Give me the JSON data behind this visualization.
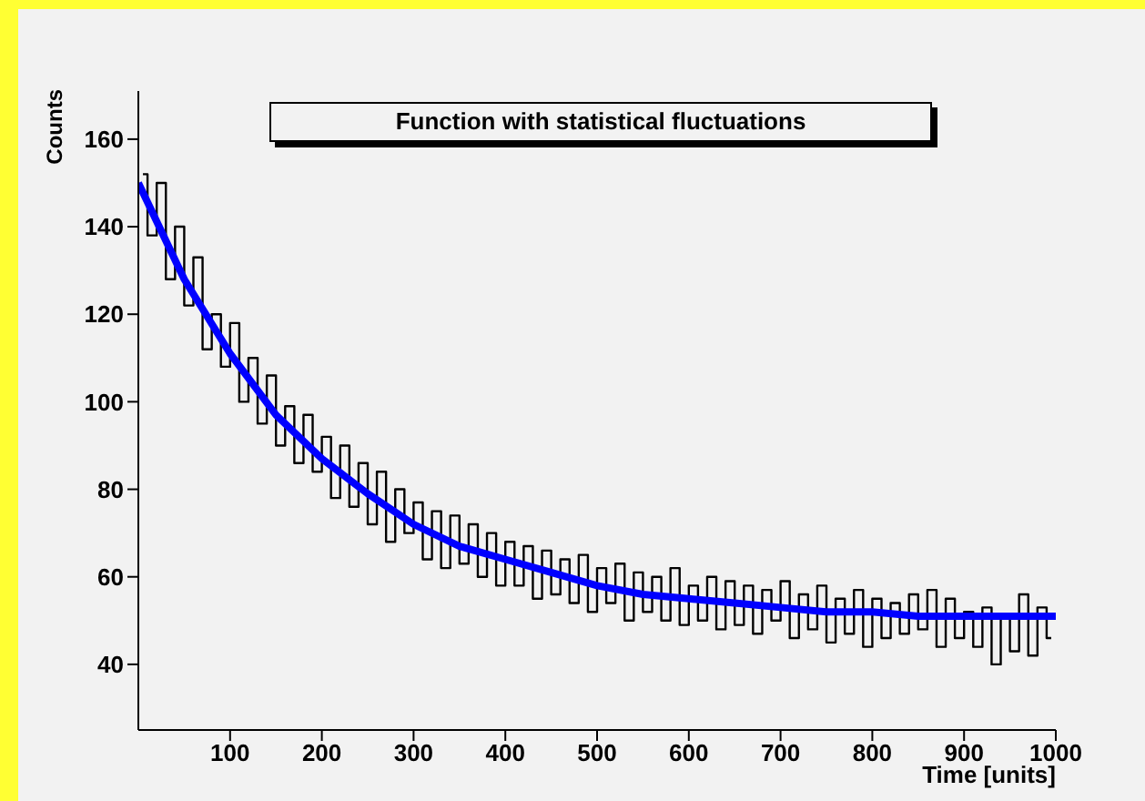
{
  "chart_data": {
    "type": "step",
    "title": "Function with statistical fluctuations",
    "xlabel": "Time [units]",
    "ylabel": "Counts",
    "xlim": [
      0,
      1000
    ],
    "xticks": [
      100,
      200,
      300,
      400,
      500,
      600,
      700,
      800,
      900,
      1000
    ],
    "ylim": [
      25,
      171
    ],
    "yticks": [
      40,
      60,
      80,
      100,
      120,
      140,
      160
    ],
    "grid": false,
    "legend": false,
    "series": [
      {
        "color": "#000000",
        "x": [
          5,
          15,
          25,
          35,
          45,
          55,
          65,
          75,
          85,
          95,
          105,
          115,
          125,
          135,
          145,
          155,
          165,
          175,
          185,
          195,
          205,
          215,
          225,
          235,
          245,
          255,
          265,
          275,
          285,
          295,
          305,
          315,
          325,
          335,
          345,
          355,
          365,
          375,
          385,
          395,
          405,
          415,
          425,
          435,
          445,
          455,
          465,
          475,
          485,
          495,
          505,
          515,
          525,
          535,
          545,
          555,
          565,
          575,
          585,
          595,
          605,
          615,
          625,
          635,
          645,
          655,
          665,
          675,
          685,
          695,
          705,
          715,
          725,
          735,
          745,
          755,
          765,
          775,
          785,
          795,
          805,
          815,
          825,
          835,
          845,
          855,
          865,
          875,
          885,
          895,
          905,
          915,
          925,
          935,
          945,
          955,
          965,
          975,
          985,
          995
        ],
        "values": [
          152,
          138,
          150,
          128,
          140,
          122,
          133,
          112,
          120,
          108,
          118,
          100,
          110,
          95,
          106,
          90,
          99,
          86,
          97,
          84,
          92,
          78,
          90,
          76,
          86,
          72,
          84,
          68,
          80,
          70,
          77,
          64,
          75,
          62,
          74,
          63,
          72,
          60,
          70,
          58,
          68,
          58,
          67,
          55,
          66,
          56,
          64,
          54,
          65,
          52,
          62,
          54,
          63,
          50,
          61,
          52,
          60,
          50,
          62,
          49,
          58,
          50,
          60,
          48,
          59,
          49,
          58,
          47,
          57,
          50,
          59,
          46,
          56,
          48,
          58,
          45,
          55,
          47,
          57,
          44,
          55,
          46,
          54,
          47,
          56,
          48,
          57,
          44,
          55,
          46,
          52,
          44,
          53,
          40,
          51,
          43,
          56,
          42,
          53,
          46
        ]
      },
      {
        "type": "line",
        "color": "#0000ff",
        "x": [
          0,
          50,
          100,
          150,
          200,
          250,
          300,
          350,
          400,
          450,
          500,
          550,
          600,
          650,
          700,
          750,
          800,
          850,
          900,
          950,
          1000
        ],
        "values": [
          150,
          128,
          111,
          97,
          87,
          79,
          72,
          67,
          64,
          61,
          58,
          56,
          55,
          54,
          53,
          52,
          52,
          51,
          51,
          51,
          51
        ]
      }
    ]
  }
}
